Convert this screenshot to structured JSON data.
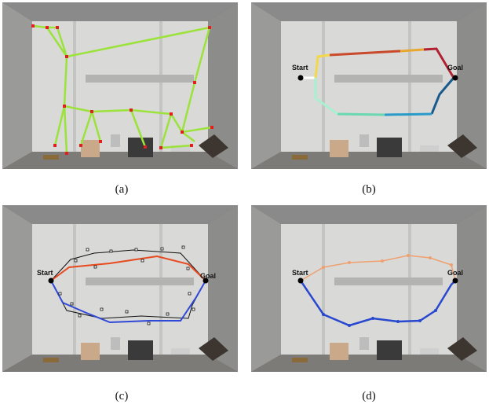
{
  "panels": [
    {
      "caption": "(a)"
    },
    {
      "caption": "(b)",
      "start": "Start",
      "goal": "Goal"
    },
    {
      "caption": "(c)",
      "start": "Start",
      "goal": "Goal"
    },
    {
      "caption": "(d)",
      "start": "Start",
      "goal": "Goal"
    }
  ]
}
